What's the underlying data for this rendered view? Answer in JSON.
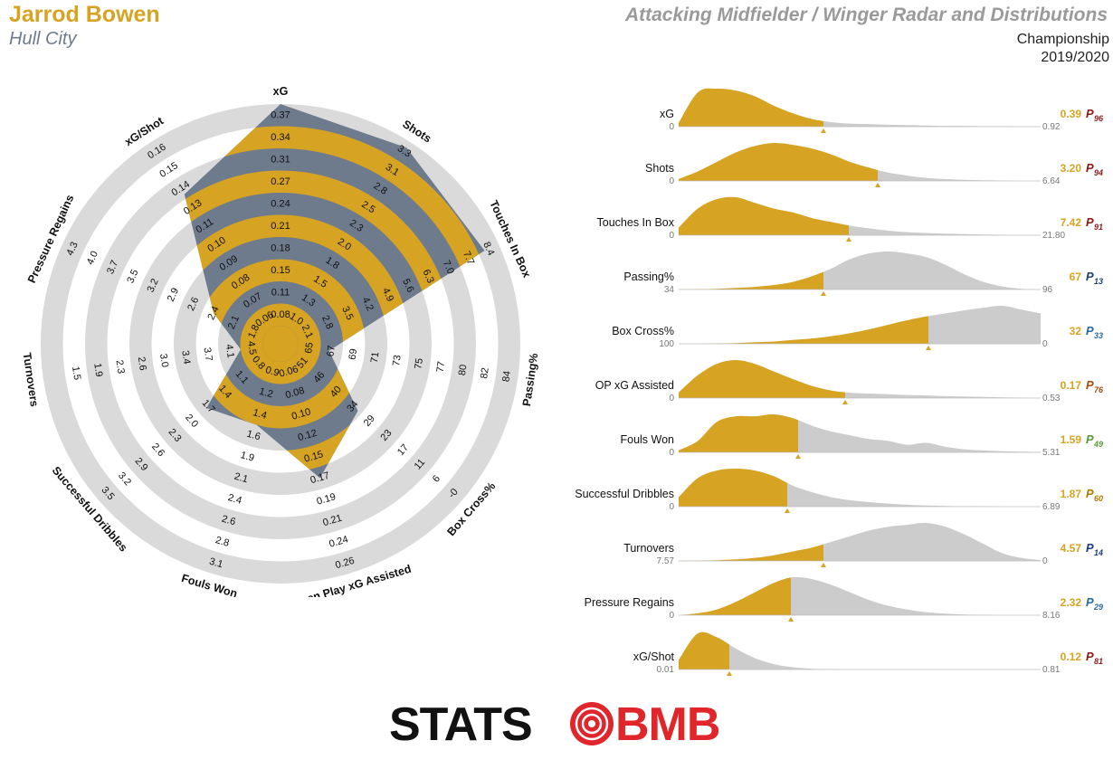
{
  "header": {
    "player": "Jarrod Bowen",
    "team": "Hull City",
    "title": "Attacking Midfielder / Winger Radar and Distributions",
    "competition": "Championship",
    "season": "2019/2020"
  },
  "colors": {
    "gold": "#d6a322",
    "slate": "#6e7b8d",
    "ring": "#dadada",
    "dist_grey": "#cccccc"
  },
  "logo": {
    "left_text": "STATS",
    "right_text": "BMB",
    "left_color": "#111111",
    "right_color": "#e0262b"
  },
  "chart_data": [
    {
      "type": "radar",
      "axes": [
        {
          "label": "xG",
          "ticks": [
            "0.08",
            "0.11",
            "0.15",
            "0.18",
            "0.21",
            "0.24",
            "0.27",
            "0.31",
            "0.34",
            "0.37"
          ],
          "player_fraction": 1.0
        },
        {
          "label": "Shots",
          "ticks": [
            "1.0",
            "1.3",
            "1.5",
            "1.8",
            "2.0",
            "2.3",
            "2.5",
            "2.8",
            "3.1",
            "3.3"
          ],
          "player_fraction": 0.97
        },
        {
          "label": "Touches In Box",
          "ticks": [
            "2.1",
            "2.8",
            "3.5",
            "4.2",
            "4.9",
            "5.6",
            "6.3",
            "7.0",
            "7.7",
            "8.4"
          ],
          "player_fraction": 0.93
        },
        {
          "label": "Passing%",
          "ticks": [
            "65",
            "67",
            "69",
            "71",
            "73",
            "75",
            "77",
            "80",
            "82",
            "84"
          ],
          "player_fraction": 0.14
        },
        {
          "label": "Box Cross%",
          "ticks": [
            "51",
            "46",
            "40",
            "34",
            "29",
            "23",
            "17",
            "11",
            "6",
            "-0"
          ],
          "player_fraction": 0.38
        },
        {
          "label": "Open Play xG Assisted",
          "ticks": [
            "0.06",
            "0.08",
            "0.10",
            "0.12",
            "0.15",
            "0.17",
            "0.19",
            "0.21",
            "0.24",
            "0.26"
          ],
          "player_fraction": 0.55
        },
        {
          "label": "Fouls Won",
          "ticks": [
            "0.9",
            "1.2",
            "1.4",
            "1.6",
            "1.9",
            "2.1",
            "2.4",
            "2.6",
            "2.8",
            "3.1"
          ],
          "player_fraction": 0.3
        },
        {
          "label": "Successful Dribbles",
          "ticks": [
            "0.8",
            "1.1",
            "1.4",
            "1.7",
            "2.0",
            "2.3",
            "2.6",
            "2.9",
            "3.2",
            "3.5"
          ],
          "player_fraction": 0.36
        },
        {
          "label": "Turnovers",
          "ticks": [
            "4.5",
            "4.1",
            "3.7",
            "3.4",
            "3.0",
            "2.6",
            "2.3",
            "1.9",
            "1.5",
            ""
          ],
          "player_fraction": 0.1
        },
        {
          "label": "Pressure Regains",
          "ticks": [
            "1.8",
            "2.1",
            "2.4",
            "2.6",
            "2.9",
            "3.2",
            "3.5",
            "3.7",
            "4.0",
            "4.3"
          ],
          "player_fraction": 0.25
        },
        {
          "label": "xG/Shot",
          "ticks": [
            "0.06",
            "0.07",
            "0.08",
            "0.09",
            "0.10",
            "0.11",
            "0.13",
            "0.14",
            "0.15",
            "0.16"
          ],
          "player_fraction": 0.72
        }
      ]
    },
    {
      "type": "area",
      "series": [
        {
          "name": "xG",
          "value": "0.39",
          "percentile": "96",
          "pcolor": "#8b1a1a",
          "min": "0",
          "max": "0.92",
          "cut": 0.4,
          "shape": [
            0.1,
            0.9,
            1.0,
            0.95,
            0.8,
            0.55,
            0.35,
            0.2,
            0.12,
            0.08,
            0.07,
            0.05,
            0.04,
            0.03,
            0.02,
            0.02,
            0.01,
            0.01,
            0.0,
            0.0
          ]
        },
        {
          "name": "Shots",
          "value": "3.20",
          "percentile": "94",
          "pcolor": "#8b1a1a",
          "min": "0",
          "max": "6.64",
          "cut": 0.55,
          "shape": [
            0.05,
            0.25,
            0.5,
            0.75,
            0.92,
            1.0,
            0.95,
            0.85,
            0.7,
            0.5,
            0.35,
            0.22,
            0.14,
            0.08,
            0.05,
            0.03,
            0.02,
            0.01,
            0.0,
            0.0
          ]
        },
        {
          "name": "Touches In Box",
          "value": "7.42",
          "percentile": "91",
          "pcolor": "#8b1a1a",
          "min": "0",
          "max": "21.80",
          "cut": 0.47,
          "shape": [
            0.2,
            0.7,
            0.95,
            1.0,
            0.85,
            0.7,
            0.6,
            0.45,
            0.35,
            0.25,
            0.18,
            0.12,
            0.08,
            0.06,
            0.04,
            0.03,
            0.02,
            0.01,
            0.0,
            0.0
          ]
        },
        {
          "name": "Passing%",
          "value": "67",
          "percentile": "13",
          "pcolor": "#1f3f7a",
          "min": "34",
          "max": "96",
          "cut": 0.4,
          "shape": [
            0.0,
            0.01,
            0.02,
            0.04,
            0.07,
            0.12,
            0.2,
            0.35,
            0.55,
            0.8,
            0.95,
            1.0,
            0.95,
            0.85,
            0.65,
            0.4,
            0.2,
            0.08,
            0.02,
            0.0
          ]
        },
        {
          "name": "Box Cross%",
          "value": "32",
          "percentile": "33",
          "pcolor": "#2a6aa0",
          "min": "100",
          "max": "0",
          "cut": 0.69,
          "shape": [
            0.0,
            0.0,
            0.01,
            0.02,
            0.04,
            0.06,
            0.1,
            0.14,
            0.2,
            0.28,
            0.38,
            0.5,
            0.62,
            0.72,
            0.8,
            0.88,
            0.95,
            1.0,
            0.9,
            0.8
          ]
        },
        {
          "name": "OP xG Assisted",
          "value": "0.17",
          "percentile": "76",
          "pcolor": "#a04a10",
          "min": "0",
          "max": "0.53",
          "cut": 0.46,
          "shape": [
            0.15,
            0.6,
            0.9,
            1.0,
            0.9,
            0.7,
            0.5,
            0.32,
            0.2,
            0.14,
            0.12,
            0.1,
            0.08,
            0.07,
            0.05,
            0.04,
            0.03,
            0.02,
            0.01,
            0.0
          ]
        },
        {
          "name": "Fouls Won",
          "value": "1.59",
          "percentile": "49",
          "pcolor": "#5a9a3a",
          "min": "0",
          "max": "5.31",
          "cut": 0.33,
          "shape": [
            0.05,
            0.3,
            0.8,
            0.95,
            0.95,
            1.0,
            0.9,
            0.7,
            0.55,
            0.45,
            0.35,
            0.3,
            0.2,
            0.25,
            0.15,
            0.08,
            0.05,
            0.03,
            0.02,
            0.01
          ]
        },
        {
          "name": "Successful Dribbles",
          "value": "1.87",
          "percentile": "60",
          "pcolor": "#b07a00",
          "min": "0",
          "max": "6.89",
          "cut": 0.3,
          "shape": [
            0.25,
            0.75,
            0.95,
            1.0,
            0.95,
            0.8,
            0.55,
            0.38,
            0.25,
            0.17,
            0.12,
            0.08,
            0.05,
            0.03,
            0.02,
            0.01,
            0.01,
            0.0,
            0.0,
            0.0
          ]
        },
        {
          "name": "Turnovers",
          "value": "4.57",
          "percentile": "14",
          "pcolor": "#1f3f7a",
          "min": "7.57",
          "max": "0",
          "cut": 0.4,
          "shape": [
            0.0,
            0.01,
            0.02,
            0.04,
            0.08,
            0.15,
            0.25,
            0.35,
            0.5,
            0.65,
            0.8,
            0.9,
            0.95,
            1.0,
            0.9,
            0.7,
            0.45,
            0.2,
            0.08,
            0.02
          ]
        },
        {
          "name": "Pressure Regains",
          "value": "2.32",
          "percentile": "29",
          "pcolor": "#2a6aa0",
          "min": "0",
          "max": "8.16",
          "cut": 0.31,
          "shape": [
            0.0,
            0.05,
            0.15,
            0.35,
            0.6,
            0.85,
            1.0,
            0.95,
            0.8,
            0.6,
            0.4,
            0.25,
            0.15,
            0.08,
            0.04,
            0.02,
            0.01,
            0.0,
            0.0,
            0.0
          ]
        },
        {
          "name": "xG/Shot",
          "value": "0.12",
          "percentile": "81",
          "pcolor": "#8b1a1a",
          "min": "0.01",
          "max": "0.81",
          "cut": 0.14,
          "shape": [
            0.25,
            0.95,
            0.85,
            0.55,
            0.3,
            0.14,
            0.06,
            0.02,
            0.01,
            0.0,
            0.0,
            0.0,
            0.0,
            0.0,
            0.0,
            0.0,
            0.0,
            0.0,
            0.0,
            0.0
          ]
        }
      ]
    }
  ]
}
